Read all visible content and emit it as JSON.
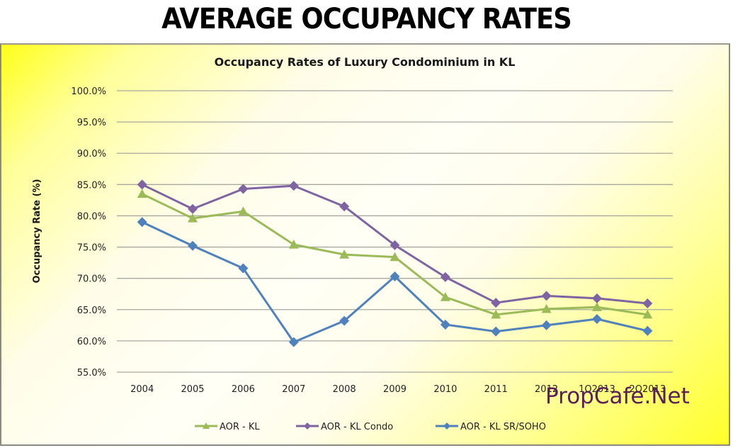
{
  "page": {
    "heading": "AVERAGE OCCUPANCY RATES",
    "watermark": "PropCafe.Net"
  },
  "chart_data": {
    "type": "line",
    "title": "Occupancy Rates of Luxury Condominium in KL",
    "xlabel": "",
    "ylabel": "Occupancy Rate (%)",
    "ylim": [
      55,
      100
    ],
    "yticks": [
      55,
      60,
      65,
      70,
      75,
      80,
      85,
      90,
      95,
      100
    ],
    "ytick_labels": [
      "55.0%",
      "60.0%",
      "65.0%",
      "70.0%",
      "75.0%",
      "80.0%",
      "85.0%",
      "90.0%",
      "95.0%",
      "100.0%"
    ],
    "grid": true,
    "legend_position": "bottom",
    "categories": [
      "2004",
      "2005",
      "2006",
      "2007",
      "2008",
      "2009",
      "2010",
      "2011",
      "2012",
      "1Q2013",
      "2Q2013"
    ],
    "series": [
      {
        "name": "AOR - KL",
        "color": "#9bbb59",
        "marker": "triangle",
        "values": [
          83.5,
          79.6,
          80.7,
          75.4,
          73.8,
          73.4,
          67.0,
          64.2,
          65.1,
          65.4,
          64.2
        ]
      },
      {
        "name": "AOR - KL Condo",
        "color": "#8064a2",
        "marker": "diamond",
        "values": [
          85.0,
          81.1,
          84.3,
          84.8,
          81.5,
          75.3,
          70.2,
          66.1,
          67.2,
          66.8,
          66.0
        ]
      },
      {
        "name": "AOR - KL SR/SOHO",
        "color": "#4f81bd",
        "marker": "diamond",
        "values": [
          79.0,
          75.2,
          71.6,
          59.8,
          63.2,
          70.3,
          62.6,
          61.5,
          62.5,
          63.5,
          61.6
        ]
      }
    ]
  }
}
